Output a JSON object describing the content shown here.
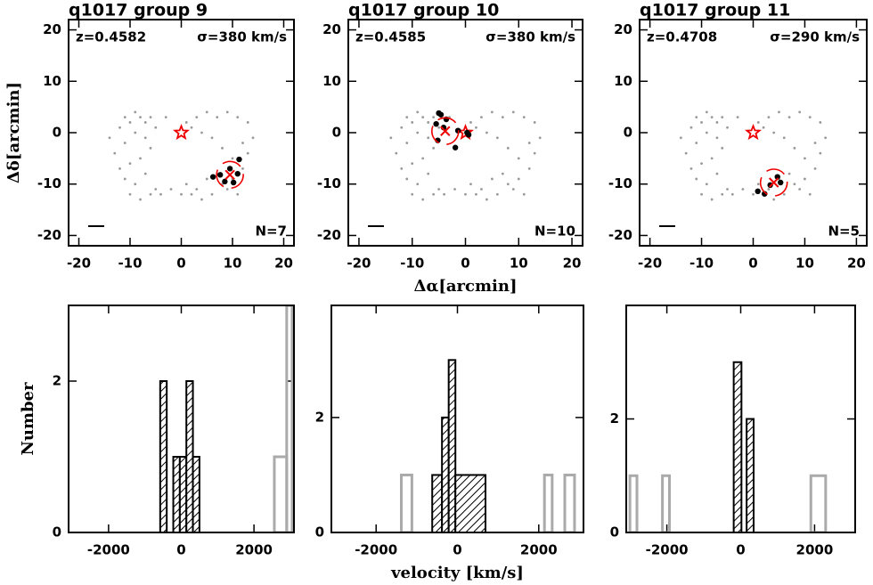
{
  "chart_data": [
    {
      "type": "scatter",
      "title": "q1017 group 9",
      "redshift": "z=0.4582",
      "dispersion": "σ=380 km/s",
      "count": "N=7",
      "ylabel": "Δδ[arcmin]",
      "xlim": [
        -22,
        22
      ],
      "ylim": [
        -22,
        22
      ],
      "xticks": [
        -20,
        -10,
        0,
        10,
        20
      ],
      "yticks": [
        -20,
        -10,
        0,
        10,
        20
      ],
      "field": {
        "x": [
          -14,
          -12,
          -11,
          -10,
          -9,
          -8,
          -7,
          -6,
          -5,
          -13,
          -11,
          -9,
          -7,
          -12,
          -10,
          -8,
          -6,
          -11,
          -9,
          -7,
          -5,
          -10,
          -8,
          -6,
          -4,
          -2,
          2,
          4,
          6,
          8,
          10,
          12,
          13,
          3,
          5,
          7,
          9,
          11,
          13,
          2,
          4,
          6,
          8,
          10,
          12,
          1,
          3,
          5,
          7,
          9,
          11,
          -3,
          0,
          1,
          14
        ],
        "y": [
          -1,
          1,
          3,
          2,
          4,
          3,
          2,
          3,
          1,
          -4,
          -2,
          0,
          -1,
          -7,
          -6,
          -5,
          -3,
          -9,
          -10,
          -8,
          -11,
          -12,
          -13,
          -12,
          -12,
          -11,
          -12,
          -13,
          -12,
          -10,
          -9,
          -7,
          -4,
          3,
          4,
          3,
          4,
          3,
          2,
          1,
          0,
          -1,
          -3,
          -5,
          -2,
          -10,
          -11,
          -9,
          -8,
          -11,
          -12,
          3,
          -12,
          2,
          -1
        ]
      },
      "members": {
        "x": [
          6.2,
          7.6,
          9.5,
          10.2,
          11,
          11.3,
          8.5
        ],
        "y": [
          -8.6,
          -8.2,
          -7,
          -9.7,
          -8,
          -5.2,
          -9.5
        ]
      },
      "center": {
        "x": 9.5,
        "y": -8.2
      },
      "qso": {
        "x": 0,
        "y": 0
      }
    },
    {
      "type": "scatter",
      "title": "q1017 group 10",
      "redshift": "z=0.4585",
      "dispersion": "σ=380 km/s",
      "count": "N=10",
      "xlabel": "Δα[arcmin]",
      "xlim": [
        -22,
        22
      ],
      "ylim": [
        -22,
        22
      ],
      "xticks": [
        -20,
        -10,
        0,
        10,
        20
      ],
      "yticks": [
        -20,
        -10,
        0,
        10,
        20
      ],
      "members": {
        "x": [
          -5.5,
          -5,
          -4.6,
          -4.1,
          -5.2,
          -3.6,
          -1.9,
          -1.4,
          0.3,
          0.6
        ],
        "y": [
          1.7,
          3.8,
          3.5,
          1,
          -1.5,
          2.6,
          -2.9,
          0.4,
          0,
          -0.4
        ]
      },
      "center": {
        "x": -3.8,
        "y": 0.3
      },
      "qso": {
        "x": 0,
        "y": 0
      }
    },
    {
      "type": "scatter",
      "title": "q1017 group 11",
      "redshift": "z=0.4708",
      "dispersion": "σ=290 km/s",
      "count": "N=5",
      "xlim": [
        -22,
        22
      ],
      "ylim": [
        -22,
        22
      ],
      "xticks": [
        -20,
        -10,
        0,
        10,
        20
      ],
      "yticks": [
        -20,
        -10,
        0,
        10,
        20
      ],
      "members": {
        "x": [
          0.9,
          2.2,
          3.3,
          4.7,
          5.3
        ],
        "y": [
          -11.4,
          -11.9,
          -10.2,
          -8.6,
          -9.7
        ]
      },
      "center": {
        "x": 4,
        "y": -9.7
      },
      "qso": {
        "x": 0,
        "y": 0
      }
    },
    {
      "type": "histogram",
      "ylabel": "Number",
      "xlim": [
        -3100,
        3100
      ],
      "ylim": [
        0,
        3
      ],
      "xticks": [
        -2000,
        0,
        2000
      ],
      "yticks": [
        0,
        2
      ],
      "members": {
        "bins": [
          -580,
          -400,
          -220,
          -40,
          140,
          320,
          500
        ],
        "counts": [
          2,
          0,
          1,
          1,
          2,
          1
        ]
      },
      "others": {
        "bins": [
          2560,
          2900,
          3050
        ],
        "counts": [
          1,
          3
        ]
      }
    },
    {
      "type": "histogram",
      "xlabel": "velocity [km/s]",
      "xlim": [
        -3100,
        3100
      ],
      "ylim": [
        0,
        3.95
      ],
      "xticks": [
        -2000,
        0,
        2000
      ],
      "yticks": [
        0,
        2
      ],
      "members": {
        "bins": [
          -620,
          -380,
          -215,
          -50,
          690
        ],
        "counts": [
          1,
          2,
          3,
          1
        ]
      },
      "others": {
        "bins": [
          -1380,
          -1120,
          2140,
          2330,
          2640,
          2880
        ],
        "counts": [
          1,
          0,
          1,
          0,
          1
        ]
      }
    },
    {
      "type": "histogram",
      "xlim": [
        -3100,
        3100
      ],
      "ylim": [
        0,
        4
      ],
      "xticks": [
        -2000,
        0,
        2000
      ],
      "yticks": [
        0,
        2
      ],
      "members": {
        "bins": [
          -190,
          20,
          160,
          350
        ],
        "counts": [
          3,
          0,
          2
        ]
      },
      "others": {
        "bins": [
          -3000,
          -2810,
          -2120,
          -1930,
          1900,
          2300
        ],
        "counts": [
          1,
          0,
          1,
          0,
          1
        ]
      }
    }
  ]
}
